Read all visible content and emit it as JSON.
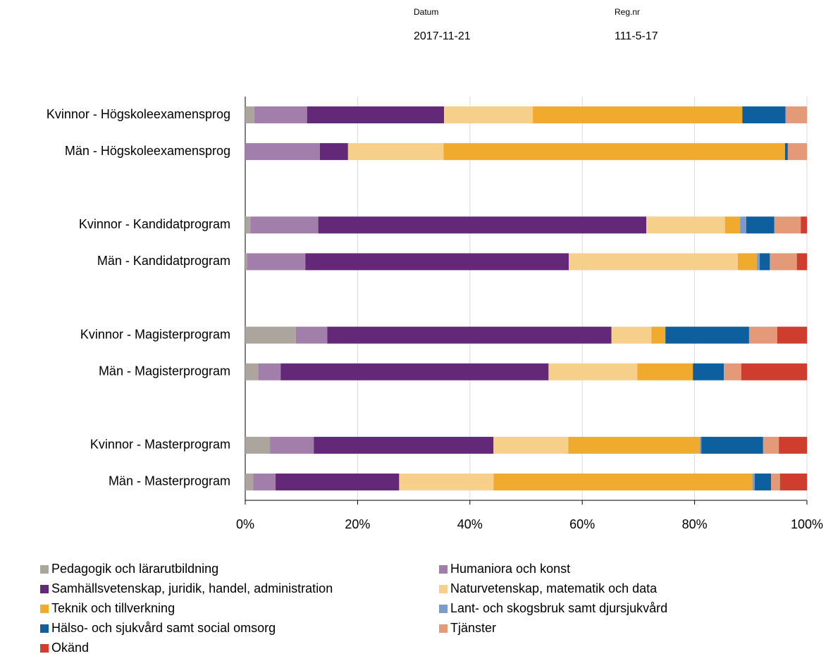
{
  "header": {
    "date_label": "Datum",
    "date": "2017-11-21",
    "reg_label": "Reg.nr",
    "reg": "111-5-17"
  },
  "chart_data": {
    "type": "stacked-bar-horizontal",
    "categories": [
      "Kvinnor - Högskoleexamensprog",
      "Män - Högskoleexamensprog",
      null,
      "Kvinnor - Kandidatprogram",
      "Män - Kandidatprogram",
      null,
      "Kvinnor - Magisterprogram",
      "Män - Magisterprogram",
      null,
      "Kvinnor - Masterprogram",
      "Män - Masterprogram"
    ],
    "series": [
      {
        "name": "Pedagogik och lärarutbildning",
        "color": "#aca59e",
        "values": [
          1.6,
          0,
          null,
          0.9,
          0.3,
          null,
          9.0,
          2.3,
          null,
          4.4,
          1.4
        ]
      },
      {
        "name": "Humaniora och konst",
        "color": "#a27faa",
        "values": [
          9.4,
          13.3,
          null,
          12.1,
          10.4,
          null,
          5.6,
          4.0,
          null,
          7.8,
          4.0
        ]
      },
      {
        "name": "Samhällsvetenskap, juridik, handel, administration",
        "color": "#642878",
        "values": [
          24.4,
          5.0,
          null,
          58.4,
          46.9,
          null,
          50.6,
          47.7,
          null,
          32.0,
          22.0
        ]
      },
      {
        "name": "Naturvetenskap, matematik och data",
        "color": "#f6cf8b",
        "values": [
          15.8,
          17.0,
          null,
          14.0,
          30.1,
          null,
          7.1,
          15.8,
          null,
          13.3,
          16.8
        ]
      },
      {
        "name": "Teknik och tillverkning",
        "color": "#f0aa2e",
        "values": [
          37.3,
          60.8,
          null,
          2.7,
          3.4,
          null,
          2.5,
          9.9,
          null,
          23.4,
          46.1
        ]
      },
      {
        "name": "Lant- och skogsbruk samt djursjukvård",
        "color": "#7b9cc9",
        "values": [
          0,
          0,
          null,
          1.1,
          0.5,
          null,
          0,
          0,
          null,
          0.3,
          0.4
        ]
      },
      {
        "name": "Hälso- och sjukvård samt social omsorg",
        "color": "#0d5f9e",
        "values": [
          7.7,
          0.5,
          null,
          5.0,
          1.8,
          null,
          14.9,
          5.5,
          null,
          11.0,
          2.9
        ]
      },
      {
        "name": "Tjänster",
        "color": "#e49a78",
        "values": [
          3.8,
          3.4,
          null,
          4.7,
          4.8,
          null,
          5.0,
          3.1,
          null,
          2.8,
          1.6
        ]
      },
      {
        "name": "Okänd",
        "color": "#cf3d2e",
        "values": [
          0,
          0,
          null,
          1.1,
          1.8,
          null,
          5.3,
          11.7,
          null,
          5.0,
          4.8
        ]
      }
    ],
    "xlim": [
      0,
      100
    ],
    "xticks": [
      {
        "value": 0,
        "label": "0%"
      },
      {
        "value": 20,
        "label": "20%"
      },
      {
        "value": 40,
        "label": "40%"
      },
      {
        "value": 60,
        "label": "60%"
      },
      {
        "value": 80,
        "label": "80%"
      },
      {
        "value": 100,
        "label": "100%"
      }
    ],
    "grid": true,
    "legend": "bottom"
  }
}
